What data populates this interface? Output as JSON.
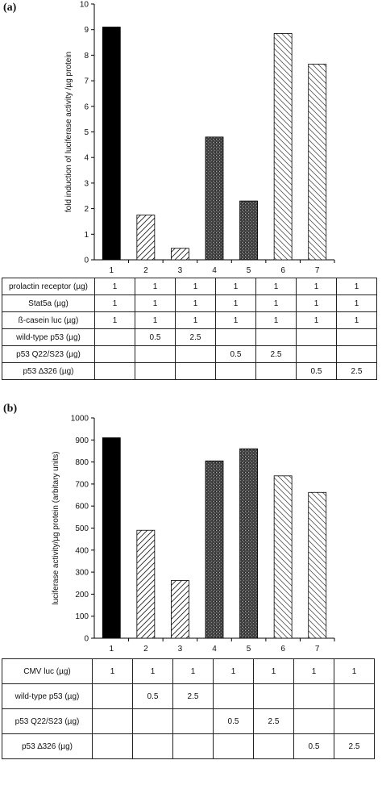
{
  "chart_data": [
    {
      "panel": "(a)",
      "type": "bar",
      "ylabel": "fold induction of luciferase activity /µg protein",
      "ylim": [
        0,
        10
      ],
      "yticks": [
        0,
        1,
        2,
        3,
        4,
        5,
        6,
        7,
        8,
        9,
        10
      ],
      "categories": [
        "1",
        "2",
        "3",
        "4",
        "5",
        "6",
        "7"
      ],
      "values": [
        9.1,
        1.75,
        0.45,
        4.8,
        2.3,
        8.85,
        7.65
      ],
      "patterns": [
        "solid",
        "hatch-right",
        "hatch-right",
        "stipple",
        "stipple",
        "hatch-left",
        "hatch-left"
      ],
      "table": [
        {
          "label": "prolactin receptor (µg)",
          "cells": [
            "1",
            "1",
            "1",
            "1",
            "1",
            "1",
            "1"
          ]
        },
        {
          "label": "Stat5a (µg)",
          "cells": [
            "1",
            "1",
            "1",
            "1",
            "1",
            "1",
            "1"
          ]
        },
        {
          "label": "ß-casein luc (µg)",
          "cells": [
            "1",
            "1",
            "1",
            "1",
            "1",
            "1",
            "1"
          ]
        },
        {
          "label": "wild-type p53 (µg)",
          "cells": [
            "",
            "0.5",
            "2.5",
            "",
            "",
            "",
            ""
          ]
        },
        {
          "label": "p53 Q22/S23 (µg)",
          "cells": [
            "",
            "",
            "",
            "0.5",
            "2.5",
            "",
            ""
          ]
        },
        {
          "label": "p53 ∆326 (µg)",
          "cells": [
            "",
            "",
            "",
            "",
            "",
            "0.5",
            "2.5"
          ]
        }
      ]
    },
    {
      "panel": "(b)",
      "type": "bar",
      "ylabel": "luciferase activity/µg protein (arbitary units)",
      "ylim": [
        0,
        1000
      ],
      "yticks": [
        0,
        100,
        200,
        300,
        400,
        500,
        600,
        700,
        800,
        900,
        1000
      ],
      "categories": [
        "1",
        "2",
        "3",
        "4",
        "5",
        "6",
        "7"
      ],
      "values": [
        910,
        490,
        262,
        805,
        860,
        737,
        662
      ],
      "patterns": [
        "solid",
        "hatch-right",
        "hatch-right",
        "stipple",
        "stipple",
        "hatch-left",
        "hatch-left"
      ],
      "table": [
        {
          "label": "CMV luc (µg)",
          "cells": [
            "1",
            "1",
            "1",
            "1",
            "1",
            "1",
            "1"
          ]
        },
        {
          "label": "wild-type p53 (µg)",
          "cells": [
            "",
            "0.5",
            "2.5",
            "",
            "",
            "",
            ""
          ]
        },
        {
          "label": "p53 Q22/S23 (µg)",
          "cells": [
            "",
            "",
            "",
            "0.5",
            "2.5",
            "",
            ""
          ]
        },
        {
          "label": "p53 ∆326 (µg)",
          "cells": [
            "",
            "",
            "",
            "",
            "",
            "0.5",
            "2.5"
          ]
        }
      ]
    }
  ]
}
